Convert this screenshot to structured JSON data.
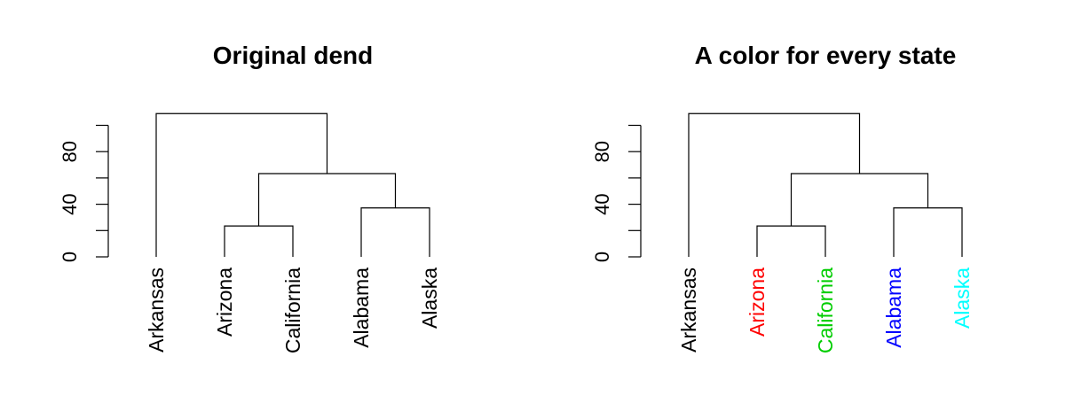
{
  "chart_data": [
    {
      "type": "dendrogram",
      "title": "Original dend",
      "ylim": [
        0,
        100
      ],
      "yticks": [
        0,
        20,
        40,
        60,
        80,
        100
      ],
      "ytick_labels": [
        "0",
        "",
        "40",
        "",
        "80",
        ""
      ],
      "leaves": [
        {
          "label": "Arkansas",
          "color": "#000000"
        },
        {
          "label": "Arizona",
          "color": "#000000"
        },
        {
          "label": "California",
          "color": "#000000"
        },
        {
          "label": "Alabama",
          "color": "#000000"
        },
        {
          "label": "Alaska",
          "color": "#000000"
        }
      ],
      "merges": [
        {
          "left": "Arizona",
          "right": "California",
          "height": 23.5
        },
        {
          "left": "Alabama",
          "right": "Alaska",
          "height": 37.2
        },
        {
          "left": 0,
          "right": 1,
          "height": 63.3
        },
        {
          "left": "Arkansas",
          "right": 2,
          "height": 108.9
        }
      ]
    },
    {
      "type": "dendrogram",
      "title": "A color for every state",
      "ylim": [
        0,
        100
      ],
      "yticks": [
        0,
        20,
        40,
        60,
        80,
        100
      ],
      "ytick_labels": [
        "0",
        "",
        "40",
        "",
        "80",
        ""
      ],
      "leaves": [
        {
          "label": "Arkansas",
          "color": "#000000"
        },
        {
          "label": "Arizona",
          "color": "#ff0000"
        },
        {
          "label": "California",
          "color": "#00cd00"
        },
        {
          "label": "Alabama",
          "color": "#0000ff"
        },
        {
          "label": "Alaska",
          "color": "#00ffff"
        }
      ],
      "merges": [
        {
          "left": "Arizona",
          "right": "California",
          "height": 23.5
        },
        {
          "left": "Alabama",
          "right": "Alaska",
          "height": 37.2
        },
        {
          "left": 0,
          "right": 1,
          "height": 63.3
        },
        {
          "left": "Arkansas",
          "right": 2,
          "height": 108.9
        }
      ]
    }
  ]
}
